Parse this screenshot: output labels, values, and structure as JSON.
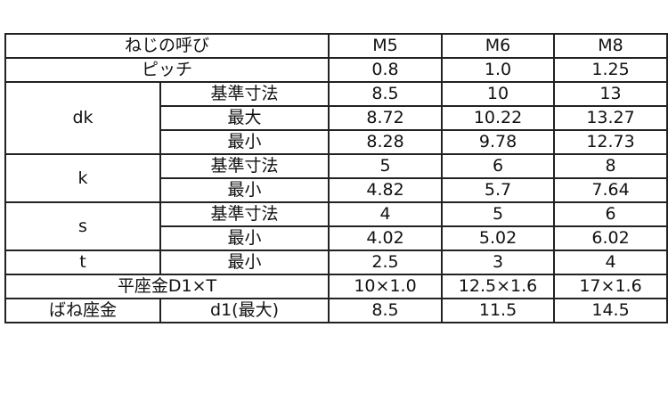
{
  "header": {
    "label": "ねじの呼び",
    "sizes": [
      "M5",
      "M6",
      "M8"
    ]
  },
  "pitch": {
    "label": "ピッチ",
    "values": [
      "0.8",
      "1.0",
      "1.25"
    ]
  },
  "dk": {
    "label": "dk",
    "rows": [
      {
        "label": "基準寸法",
        "values": [
          "8.5",
          "10",
          "13"
        ]
      },
      {
        "label": "最大",
        "values": [
          "8.72",
          "10.22",
          "13.27"
        ]
      },
      {
        "label": "最小",
        "values": [
          "8.28",
          "9.78",
          "12.73"
        ]
      }
    ]
  },
  "k": {
    "label": "k",
    "rows": [
      {
        "label": "基準寸法",
        "values": [
          "5",
          "6",
          "8"
        ]
      },
      {
        "label": "最小",
        "values": [
          "4.82",
          "5.7",
          "7.64"
        ]
      }
    ]
  },
  "s": {
    "label": "s",
    "rows": [
      {
        "label": "基準寸法",
        "values": [
          "4",
          "5",
          "6"
        ]
      },
      {
        "label": "最小",
        "values": [
          "4.02",
          "5.02",
          "6.02"
        ]
      }
    ]
  },
  "t": {
    "label": "t",
    "sub": "最小",
    "values": [
      "2.5",
      "3",
      "4"
    ]
  },
  "flat_washer": {
    "label": "平座金D1×T",
    "values": [
      "10×1.0",
      "12.5×1.6",
      "17×1.6"
    ]
  },
  "spring_washer": {
    "label": "ばね座金",
    "sub": "d1(最大)",
    "values": [
      "8.5",
      "11.5",
      "14.5"
    ]
  }
}
